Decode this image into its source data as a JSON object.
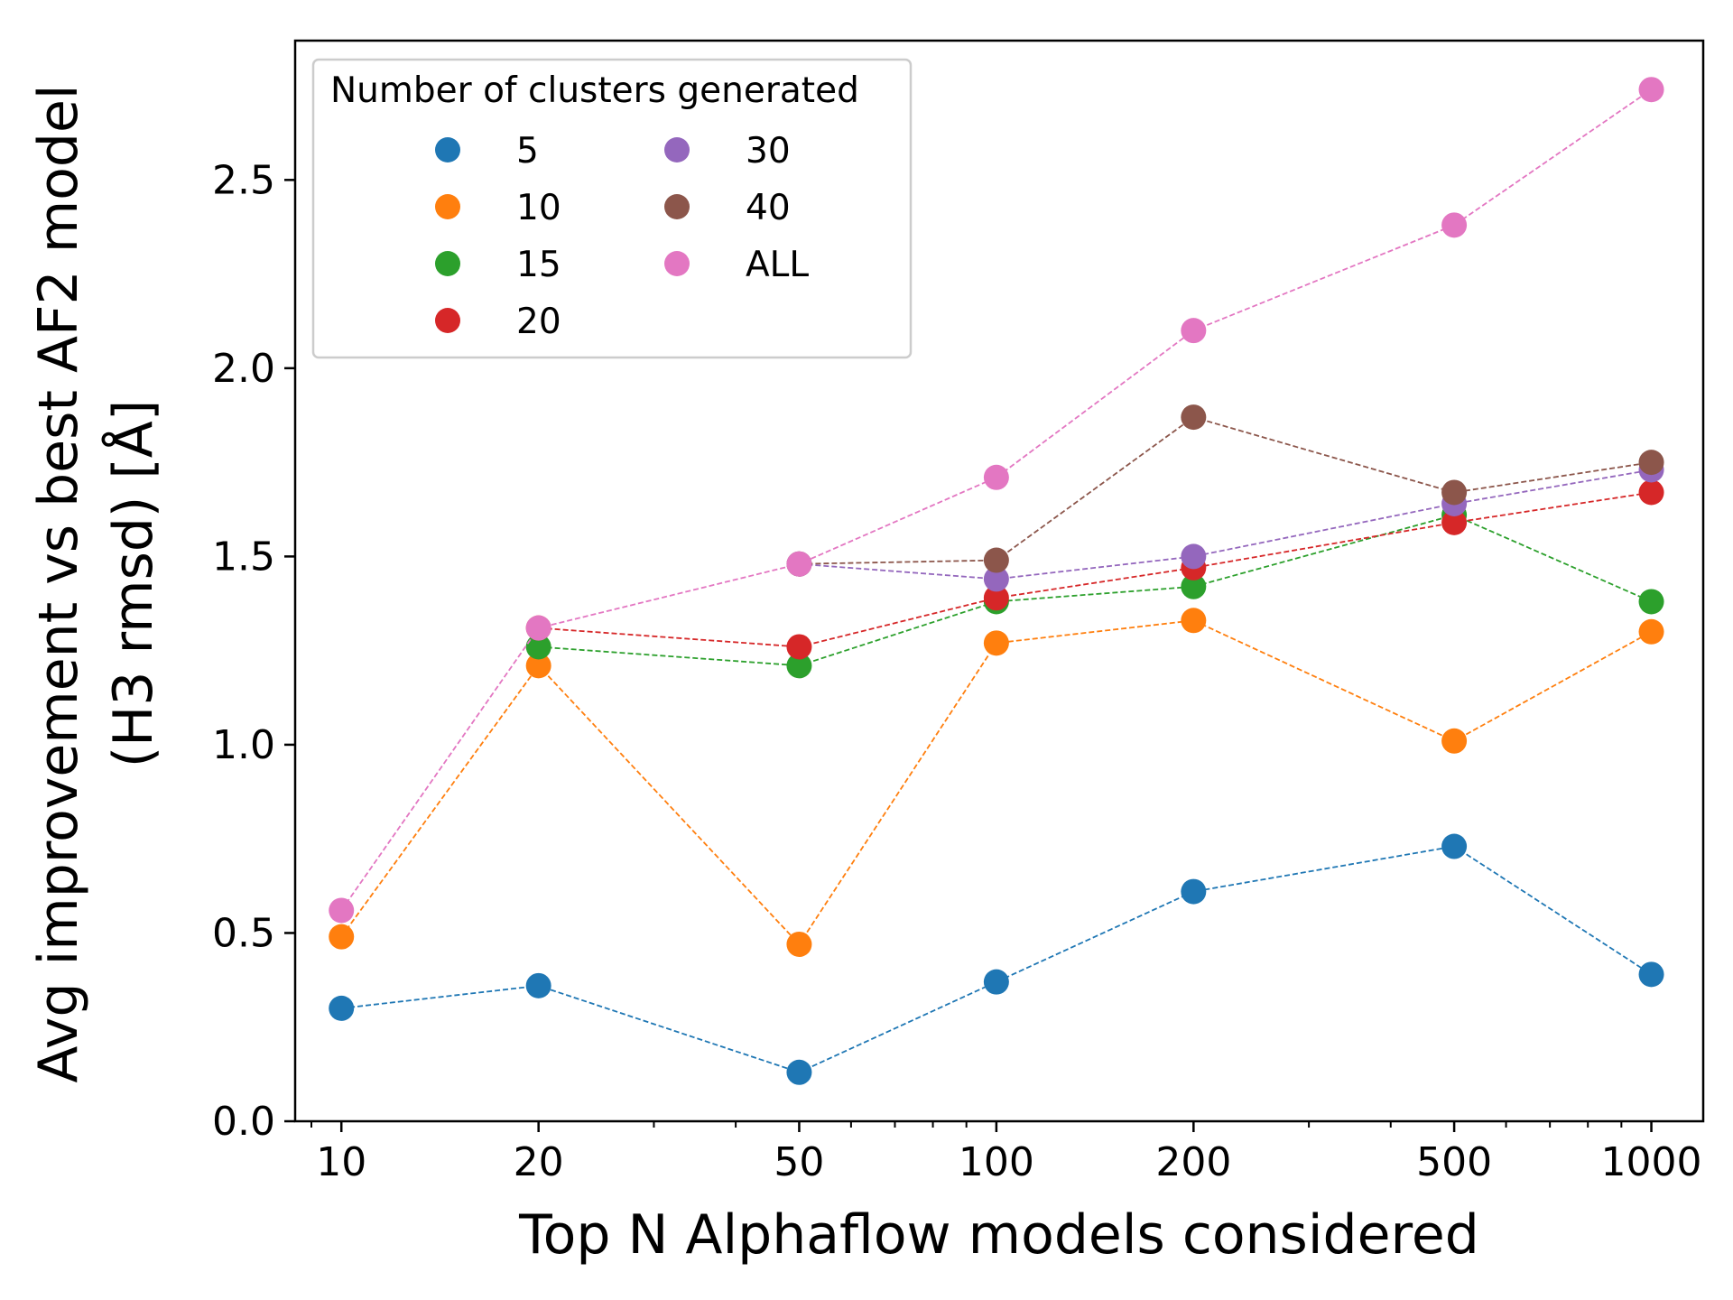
{
  "chart_data": {
    "type": "scatter",
    "xscale": "log",
    "xlabel": "Top N Alphaflow models considered",
    "ylabel_lines": [
      "Avg improvement vs best AF2 model",
      "(H3 rmsd) [Å]"
    ],
    "xlim": [
      8.5,
      1200
    ],
    "ylim": [
      0,
      2.87
    ],
    "x_ticks": [
      10,
      20,
      50,
      100,
      200,
      500,
      1000
    ],
    "x_tick_labels": [
      "10",
      "20",
      "50",
      "100",
      "200",
      "500",
      "1000"
    ],
    "y_ticks": [
      0.0,
      0.5,
      1.0,
      1.5,
      2.0,
      2.5
    ],
    "y_tick_labels": [
      "0.0",
      "0.5",
      "1.0",
      "1.5",
      "2.0",
      "2.5"
    ],
    "legend": {
      "title": "Number of clusters generated",
      "placement": "top-left",
      "columns": 2
    },
    "series": [
      {
        "name": "5",
        "color": "#1f77b4",
        "x": [
          10,
          20,
          50,
          100,
          200,
          500,
          1000
        ],
        "y": [
          0.3,
          0.36,
          0.13,
          0.37,
          0.61,
          0.73,
          0.39
        ]
      },
      {
        "name": "10",
        "color": "#ff7f0e",
        "x": [
          10,
          20,
          50,
          100,
          200,
          500,
          1000
        ],
        "y": [
          0.49,
          1.21,
          0.47,
          1.27,
          1.33,
          1.01,
          1.3
        ]
      },
      {
        "name": "15",
        "color": "#2ca02c",
        "x": [
          20,
          50,
          100,
          200,
          500,
          1000
        ],
        "y": [
          1.26,
          1.21,
          1.38,
          1.42,
          1.61,
          1.38
        ]
      },
      {
        "name": "20",
        "color": "#d62728",
        "x": [
          20,
          50,
          100,
          200,
          500,
          1000
        ],
        "y": [
          1.31,
          1.26,
          1.39,
          1.47,
          1.59,
          1.67
        ]
      },
      {
        "name": "30",
        "color": "#9467bd",
        "x": [
          50,
          100,
          200,
          500,
          1000
        ],
        "y": [
          1.48,
          1.44,
          1.5,
          1.64,
          1.73
        ]
      },
      {
        "name": "40",
        "color": "#8c564b",
        "x": [
          50,
          100,
          200,
          500,
          1000
        ],
        "y": [
          1.48,
          1.49,
          1.87,
          1.67,
          1.75
        ]
      },
      {
        "name": "ALL",
        "color": "#e377c2",
        "x": [
          10,
          20,
          50,
          100,
          200,
          500,
          1000
        ],
        "y": [
          0.56,
          1.31,
          1.48,
          1.71,
          2.1,
          2.38,
          2.74
        ]
      }
    ]
  }
}
